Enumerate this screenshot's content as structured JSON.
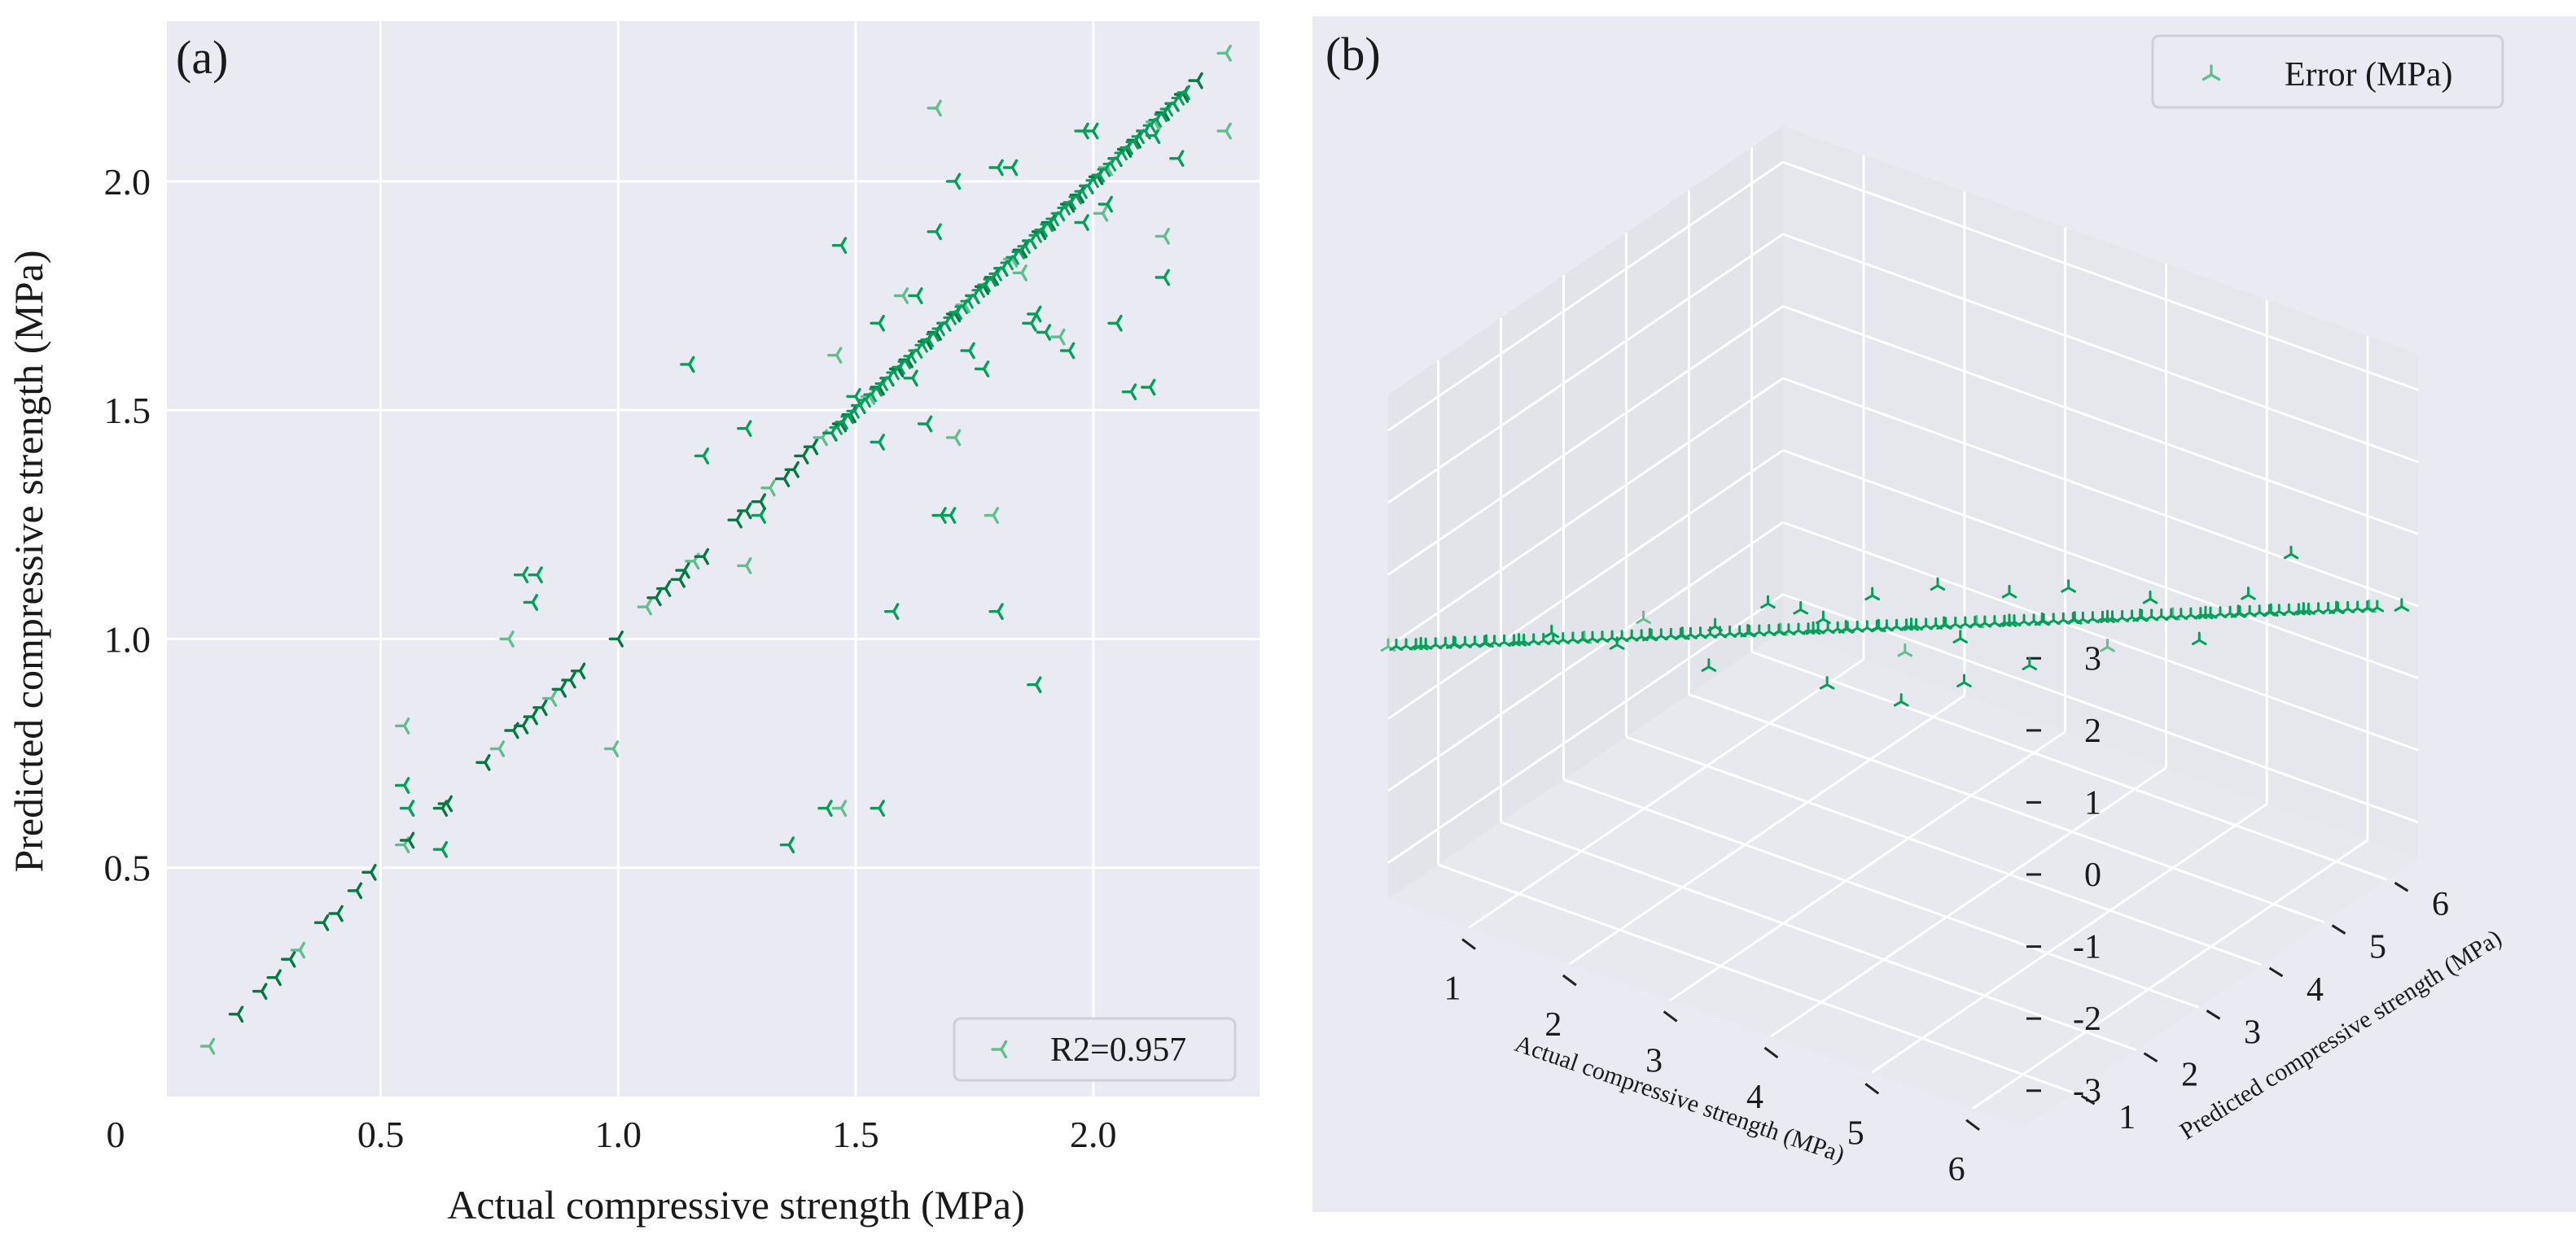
{
  "colors": {
    "axes_bg": "#eaeaf2",
    "grid": "#ffffff",
    "marker": "#00a05a",
    "marker_dark": "#007a40",
    "marker_light": "#5fbf8e",
    "text": "#1a1a1a"
  },
  "chart_data": [
    {
      "type": "scatter",
      "panel_label": "(a)",
      "xlabel": "Actual compressive strength (MPa)",
      "ylabel": "Predicted compressive strength (MPa)",
      "xlim": [
        0.05,
        2.35
      ],
      "ylim": [
        0.0,
        2.35
      ],
      "xticks": [
        0.5,
        1.0,
        1.5,
        2.0
      ],
      "xtick_labels": [
        "0.5",
        "1.0",
        "1.5",
        "2.0"
      ],
      "yticks": [
        0.5,
        1.0,
        1.5,
        2.0
      ],
      "ytick_labels": [
        "0.5",
        "1.0",
        "1.5",
        "2.0"
      ],
      "origin_label": "0",
      "grid": true,
      "legend": {
        "position": "bottom-right",
        "entries": [
          "R2=0.957"
        ]
      },
      "marker": "tri_left",
      "series": [
        {
          "name": "R2=0.957",
          "diagonal": [
            [
              0.14,
              0.11
            ],
            [
              0.2,
              0.18
            ],
            [
              0.25,
              0.23
            ],
            [
              0.28,
              0.26
            ],
            [
              0.31,
              0.3
            ],
            [
              0.33,
              0.32
            ],
            [
              0.38,
              0.38
            ],
            [
              0.41,
              0.4
            ],
            [
              0.45,
              0.45
            ],
            [
              0.48,
              0.49
            ],
            [
              0.55,
              0.55
            ],
            [
              0.56,
              0.56
            ],
            [
              0.63,
              0.63
            ],
            [
              0.64,
              0.64
            ],
            [
              0.72,
              0.73
            ],
            [
              0.75,
              0.76
            ],
            [
              0.78,
              0.8
            ],
            [
              0.8,
              0.81
            ],
            [
              0.82,
              0.83
            ],
            [
              0.84,
              0.85
            ],
            [
              0.86,
              0.87
            ],
            [
              0.88,
              0.89
            ],
            [
              0.9,
              0.91
            ],
            [
              0.92,
              0.93
            ],
            [
              1.0,
              1.0
            ],
            [
              1.06,
              1.07
            ],
            [
              1.08,
              1.09
            ],
            [
              1.1,
              1.11
            ],
            [
              1.13,
              1.13
            ],
            [
              1.14,
              1.15
            ],
            [
              1.16,
              1.17
            ],
            [
              1.18,
              1.18
            ],
            [
              1.25,
              1.26
            ],
            [
              1.27,
              1.28
            ],
            [
              1.3,
              1.3
            ],
            [
              1.32,
              1.33
            ],
            [
              1.35,
              1.35
            ],
            [
              1.37,
              1.37
            ],
            [
              1.39,
              1.4
            ],
            [
              1.41,
              1.42
            ],
            [
              1.43,
              1.44
            ],
            [
              1.45,
              1.45
            ],
            [
              1.47,
              1.47
            ],
            [
              1.49,
              1.49
            ],
            [
              1.51,
              1.51
            ],
            [
              1.53,
              1.53
            ],
            [
              1.55,
              1.55
            ],
            [
              1.57,
              1.57
            ],
            [
              1.59,
              1.59
            ],
            [
              1.61,
              1.61
            ],
            [
              1.63,
              1.63
            ],
            [
              1.65,
              1.65
            ],
            [
              1.67,
              1.67
            ],
            [
              1.69,
              1.69
            ],
            [
              1.71,
              1.71
            ],
            [
              1.73,
              1.73
            ],
            [
              1.75,
              1.75
            ],
            [
              1.77,
              1.77
            ],
            [
              1.79,
              1.79
            ],
            [
              1.81,
              1.81
            ],
            [
              1.83,
              1.83
            ],
            [
              1.85,
              1.85
            ],
            [
              1.87,
              1.87
            ],
            [
              1.89,
              1.89
            ],
            [
              1.91,
              1.91
            ],
            [
              1.93,
              1.93
            ],
            [
              1.95,
              1.95
            ],
            [
              1.97,
              1.97
            ],
            [
              1.99,
              1.99
            ],
            [
              2.01,
              2.01
            ],
            [
              2.03,
              2.03
            ],
            [
              2.05,
              2.05
            ],
            [
              2.07,
              2.07
            ],
            [
              2.09,
              2.09
            ],
            [
              2.11,
              2.11
            ],
            [
              2.13,
              2.13
            ],
            [
              2.15,
              2.15
            ],
            [
              2.17,
              2.17
            ],
            [
              2.19,
              2.19
            ],
            [
              2.22,
              2.22
            ],
            [
              2.28,
              2.28
            ]
          ],
          "scattered": [
            [
              0.55,
              0.81
            ],
            [
              0.55,
              0.68
            ],
            [
              0.56,
              0.63
            ],
            [
              0.63,
              0.54
            ],
            [
              0.77,
              1.0
            ],
            [
              0.8,
              1.14
            ],
            [
              0.83,
              1.14
            ],
            [
              0.82,
              1.08
            ],
            [
              0.99,
              0.76
            ],
            [
              1.15,
              1.6
            ],
            [
              1.18,
              1.4
            ],
            [
              1.27,
              1.46
            ],
            [
              1.27,
              1.16
            ],
            [
              1.3,
              1.27
            ],
            [
              1.36,
              0.55
            ],
            [
              1.44,
              0.63
            ],
            [
              1.47,
              0.63
            ],
            [
              1.55,
              0.63
            ],
            [
              1.58,
              1.06
            ],
            [
              1.47,
              1.86
            ],
            [
              1.46,
              1.62
            ],
            [
              1.5,
              1.53
            ],
            [
              1.55,
              1.69
            ],
            [
              1.55,
              1.43
            ],
            [
              1.6,
              1.75
            ],
            [
              1.62,
              1.57
            ],
            [
              1.63,
              1.75
            ],
            [
              1.65,
              1.47
            ],
            [
              1.67,
              2.16
            ],
            [
              1.67,
              1.89
            ],
            [
              1.68,
              1.27
            ],
            [
              1.7,
              1.27
            ],
            [
              1.71,
              1.44
            ],
            [
              1.71,
              2.0
            ],
            [
              1.74,
              1.63
            ],
            [
              1.77,
              1.59
            ],
            [
              1.79,
              1.27
            ],
            [
              1.8,
              1.06
            ],
            [
              1.8,
              2.03
            ],
            [
              1.83,
              2.03
            ],
            [
              1.85,
              1.8
            ],
            [
              1.87,
              1.69
            ],
            [
              1.88,
              0.9
            ],
            [
              1.88,
              1.71
            ],
            [
              1.93,
              1.66
            ],
            [
              1.95,
              1.63
            ],
            [
              1.98,
              2.11
            ],
            [
              2.0,
              2.11
            ],
            [
              2.02,
              1.93
            ],
            [
              2.05,
              1.69
            ],
            [
              2.08,
              1.54
            ],
            [
              2.12,
              1.55
            ],
            [
              2.15,
              1.88
            ],
            [
              2.15,
              1.79
            ],
            [
              2.13,
              2.1
            ],
            [
              2.18,
              2.05
            ],
            [
              2.28,
              2.11
            ],
            [
              1.9,
              1.67
            ],
            [
              1.98,
              1.91
            ],
            [
              2.03,
              1.95
            ]
          ]
        }
      ]
    },
    {
      "type": "scatter3d",
      "panel_label": "(b)",
      "xlabel": "Actual compressive strength (MPa)",
      "ylabel": "Predicted compressive strength (MPa)",
      "zlabel": "",
      "xlim": [
        0.2,
        6.5
      ],
      "ylim": [
        0.2,
        6.5
      ],
      "zlim": [
        -3.5,
        3.5
      ],
      "xtick_labels": [
        "1",
        "2",
        "3",
        "4",
        "5",
        "6"
      ],
      "ytick_labels": [
        "1",
        "2",
        "3",
        "4",
        "5",
        "6"
      ],
      "ztick_labels": [
        "3",
        "2",
        "1",
        "0",
        "-1",
        "-2",
        "-3"
      ],
      "grid": true,
      "legend": {
        "position": "top-right",
        "entries": [
          "Error (MPa)"
        ]
      },
      "marker": "tri_up",
      "series": [
        {
          "name": "Error (MPa)",
          "points_xyz": [
            [
              0.2,
              0.2,
              0.0
            ],
            [
              0.4,
              0.4,
              0.0
            ],
            [
              0.6,
              0.6,
              0.0
            ],
            [
              0.8,
              0.8,
              0.0
            ],
            [
              1.0,
              1.0,
              0.0
            ],
            [
              1.2,
              1.2,
              0.1
            ],
            [
              1.4,
              1.4,
              0.0
            ],
            [
              1.6,
              1.6,
              -0.1
            ],
            [
              1.8,
              1.8,
              0.0
            ],
            [
              2.0,
              2.0,
              0.0
            ],
            [
              2.2,
              2.2,
              0.1
            ],
            [
              2.4,
              2.4,
              0.0
            ],
            [
              2.6,
              2.6,
              0.0
            ],
            [
              2.8,
              2.8,
              0.0
            ],
            [
              3.0,
              3.0,
              0.0
            ],
            [
              3.2,
              3.2,
              0.0
            ],
            [
              3.4,
              3.4,
              0.0
            ],
            [
              3.6,
              3.6,
              0.0
            ],
            [
              3.8,
              3.8,
              0.0
            ],
            [
              4.0,
              4.0,
              0.0
            ],
            [
              4.2,
              4.2,
              0.0
            ],
            [
              4.4,
              4.4,
              0.0
            ],
            [
              4.6,
              4.6,
              0.0
            ],
            [
              4.8,
              4.8,
              0.0
            ],
            [
              5.0,
              5.0,
              0.0
            ],
            [
              5.2,
              5.2,
              0.0
            ],
            [
              5.4,
              5.4,
              0.0
            ],
            [
              5.6,
              5.6,
              0.0
            ],
            [
              5.8,
              5.8,
              0.0
            ],
            [
              6.0,
              6.0,
              0.0
            ],
            [
              6.2,
              6.2,
              0.0
            ],
            [
              6.4,
              6.4,
              0.0
            ],
            [
              2.6,
              2.4,
              0.5
            ],
            [
              2.8,
              2.6,
              0.4
            ],
            [
              3.0,
              2.7,
              -0.6
            ],
            [
              3.2,
              3.1,
              0.5
            ],
            [
              3.4,
              3.3,
              -0.3
            ],
            [
              3.6,
              3.5,
              0.6
            ],
            [
              3.8,
              3.6,
              -0.7
            ],
            [
              4.0,
              4.0,
              0.4
            ],
            [
              4.2,
              4.0,
              -0.5
            ],
            [
              4.4,
              4.3,
              0.5
            ],
            [
              4.6,
              4.6,
              -0.4
            ],
            [
              4.9,
              4.8,
              0.3
            ],
            [
              5.2,
              5.1,
              -0.3
            ],
            [
              5.5,
              5.4,
              0.3
            ],
            [
              5.8,
              5.6,
              0.9
            ],
            [
              2.2,
              2.1,
              -0.4
            ],
            [
              1.8,
              1.7,
              0.3
            ],
            [
              3.3,
              3.4,
              -1.1
            ],
            [
              2.9,
              2.8,
              0.2
            ],
            [
              3.7,
              3.7,
              -0.2
            ]
          ]
        }
      ]
    }
  ]
}
